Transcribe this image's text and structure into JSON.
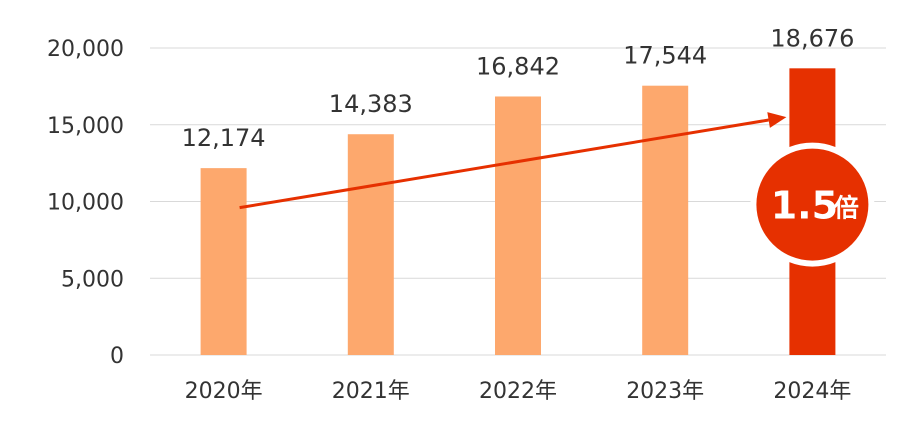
{
  "chart_data": {
    "type": "bar",
    "categories": [
      "2020年",
      "2021年",
      "2022年",
      "2023年",
      "2024年"
    ],
    "values": [
      12174,
      14383,
      16842,
      17544,
      18676
    ],
    "value_labels": [
      "12,174",
      "14,383",
      "16,842",
      "17,544",
      "18,676"
    ],
    "y_ticks": [
      "0",
      "5,000",
      "10,000",
      "15,000",
      "20,000"
    ],
    "y_tick_values": [
      0,
      5000,
      10000,
      15000,
      20000
    ],
    "ylim": [
      0,
      20000
    ],
    "title": "",
    "xlabel": "",
    "ylabel": "",
    "grid": "horizontal",
    "bar_color": "#FDA86D",
    "highlight_bar_color": "#E63000",
    "highlight_index": 4,
    "trend_arrow": {
      "from_category": "2020年",
      "from_value": 9600,
      "to_category": "2024年",
      "to_value": 15500,
      "color": "#E63000"
    },
    "annotation": {
      "number": "1.5",
      "unit": "倍",
      "category": "2024年",
      "value": 9800,
      "fill": "#E63000",
      "ring": "#ffffff"
    }
  }
}
